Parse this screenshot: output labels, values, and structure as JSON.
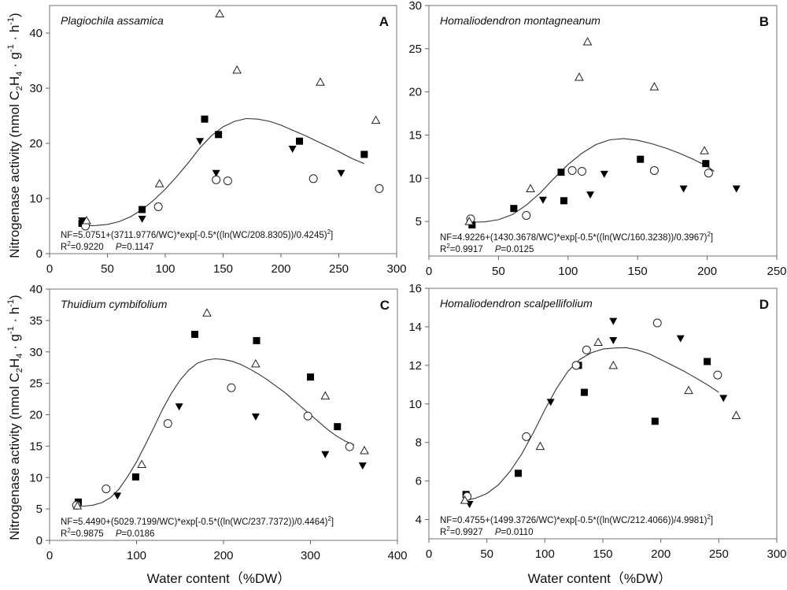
{
  "chart_data": [
    {
      "type": "scatter",
      "panel": "A",
      "title": "Plagiochila assamica",
      "xlabel": "",
      "ylabel": "Nitrogenase activity (nmol C2H4 · g-1 · h-1)",
      "xlim": [
        0,
        300
      ],
      "ylim": [
        0,
        45
      ],
      "xticks": [
        0,
        50,
        100,
        150,
        200,
        250,
        300
      ],
      "yticks": [
        0,
        10,
        20,
        30,
        40
      ],
      "equation": "NF=5.0751+(3711.9776/WC)*exp[-0.5*((ln(WC/208.8305))/0.4245)2]",
      "stats_r2": "R2=0.9220",
      "stats_p": "P=0.1147",
      "series": [
        {
          "name": "square",
          "marker": "square-filled",
          "points": [
            [
              28,
              5.5
            ],
            [
              80,
              8
            ],
            [
              134,
              24.4
            ],
            [
              146,
              21.6
            ],
            [
              216,
              20.4
            ],
            [
              272,
              18
            ]
          ]
        },
        {
          "name": "triangle-down",
          "marker": "triangle-down-filled",
          "points": [
            [
              28,
              6
            ],
            [
              80,
              6.3
            ],
            [
              130,
              20.4
            ],
            [
              144,
              14.6
            ],
            [
              210,
              19
            ],
            [
              252,
              14.6
            ]
          ]
        },
        {
          "name": "circle",
          "marker": "circle-open",
          "points": [
            [
              31,
              5
            ],
            [
              94,
              8.5
            ],
            [
              144,
              13.4
            ],
            [
              154,
              13.2
            ],
            [
              228,
              13.6
            ],
            [
              285,
              11.8
            ]
          ]
        },
        {
          "name": "triangle-up",
          "marker": "triangle-up-open",
          "points": [
            [
              32,
              6
            ],
            [
              95,
              12.7
            ],
            [
              147,
              43.5
            ],
            [
              162,
              33.3
            ],
            [
              234,
              31.1
            ],
            [
              282,
              24.2
            ]
          ]
        }
      ],
      "fit_curve": [
        [
          30,
          5.05
        ],
        [
          40,
          5.1
        ],
        [
          50,
          5.3
        ],
        [
          60,
          5.8
        ],
        [
          70,
          6.7
        ],
        [
          80,
          8
        ],
        [
          90,
          9.7
        ],
        [
          100,
          11.7
        ],
        [
          110,
          14
        ],
        [
          120,
          16.5
        ],
        [
          130,
          19.2
        ],
        [
          140,
          21.4
        ],
        [
          150,
          23
        ],
        [
          160,
          24
        ],
        [
          170,
          24.5
        ],
        [
          180,
          24.4
        ],
        [
          190,
          24
        ],
        [
          200,
          23.3
        ],
        [
          210,
          22.4
        ],
        [
          220,
          21.5
        ],
        [
          230,
          20.5
        ],
        [
          240,
          19.5
        ],
        [
          250,
          18.5
        ],
        [
          260,
          17.4
        ],
        [
          272,
          16.3
        ]
      ]
    },
    {
      "type": "scatter",
      "panel": "B",
      "title": "Homaliodendron montagneanum",
      "xlabel": "",
      "ylabel": "",
      "xlim": [
        0,
        250
      ],
      "ylim": [
        1,
        30
      ],
      "xticks": [
        0,
        50,
        100,
        150,
        200,
        250
      ],
      "yticks": [
        5,
        10,
        15,
        20,
        25,
        30
      ],
      "equation": "NF=4.9226+(1430.3678/WC)*exp[-0.5*((ln(WC/160.3238))/0.3967)2]",
      "stats_r2": "R2=0.9917",
      "stats_p": "P=0.0125",
      "series": [
        {
          "name": "square",
          "marker": "square-filled",
          "points": [
            [
              31,
              4.6
            ],
            [
              61,
              6.5
            ],
            [
              95,
              10.7
            ],
            [
              97,
              7.4
            ],
            [
              152,
              12.2
            ],
            [
              199,
              11.7
            ]
          ]
        },
        {
          "name": "triangle-down",
          "marker": "triangle-down-filled",
          "points": [
            [
              82,
              7.5
            ],
            [
              116,
              8.1
            ],
            [
              126,
              10.5
            ],
            [
              183,
              8.8
            ],
            [
              221,
              8.8
            ]
          ]
        },
        {
          "name": "circle",
          "marker": "circle-open",
          "points": [
            [
              30,
              5.3
            ],
            [
              70,
              5.7
            ],
            [
              103,
              10.9
            ],
            [
              110,
              10.8
            ],
            [
              162,
              10.9
            ],
            [
              201,
              10.6
            ]
          ]
        },
        {
          "name": "triangle-up",
          "marker": "triangle-up-open",
          "points": [
            [
              29,
              5
            ],
            [
              73,
              8.8
            ],
            [
              108,
              21.7
            ],
            [
              114,
              25.8
            ],
            [
              162,
              20.6
            ],
            [
              198,
              13.2
            ]
          ]
        }
      ],
      "fit_curve": [
        [
          31,
          4.92
        ],
        [
          40,
          4.95
        ],
        [
          50,
          5.2
        ],
        [
          60,
          5.8
        ],
        [
          70,
          6.9
        ],
        [
          80,
          8.3
        ],
        [
          90,
          10
        ],
        [
          100,
          11.6
        ],
        [
          110,
          12.9
        ],
        [
          120,
          13.9
        ],
        [
          130,
          14.45
        ],
        [
          140,
          14.6
        ],
        [
          150,
          14.4
        ],
        [
          160,
          14
        ],
        [
          170,
          13.5
        ],
        [
          180,
          12.9
        ],
        [
          190,
          12.2
        ],
        [
          200,
          11.4
        ],
        [
          205,
          10.8
        ]
      ]
    },
    {
      "type": "scatter",
      "panel": "C",
      "title": "Thuidium cymbifolium",
      "xlabel": "Water content（%DW）",
      "ylabel": "Nitrogenase activity (nmol C2H4 · g-1 · h-1)",
      "xlim": [
        0,
        400
      ],
      "ylim": [
        0,
        40
      ],
      "xticks": [
        0,
        100,
        200,
        300,
        400
      ],
      "yticks": [
        0,
        5,
        10,
        15,
        20,
        25,
        30,
        35,
        40
      ],
      "equation": "NF=5.4490+(5029.7199/WC)*exp[-0.5*((ln(WC/237.7372))/0.4464)2]",
      "stats_r2": "R2=0.9875",
      "stats_p": "P=0.0186",
      "series": [
        {
          "name": "square",
          "marker": "square-filled",
          "points": [
            [
              33,
              6.1
            ],
            [
              99,
              10.1
            ],
            [
              167,
              32.8
            ],
            [
              238,
              31.8
            ],
            [
              300,
              26
            ],
            [
              331,
              18.1
            ]
          ]
        },
        {
          "name": "triangle-down",
          "marker": "triangle-down-filled",
          "points": [
            [
              78,
              7.1
            ],
            [
              149,
              21.3
            ],
            [
              237,
              19.7
            ],
            [
              317,
              13.7
            ],
            [
              360,
              11.9
            ]
          ]
        },
        {
          "name": "circle",
          "marker": "circle-open",
          "points": [
            [
              31,
              5.6
            ],
            [
              65,
              8.2
            ],
            [
              136,
              18.6
            ],
            [
              209,
              24.3
            ],
            [
              297,
              19.8
            ],
            [
              345,
              14.9
            ]
          ]
        },
        {
          "name": "triangle-up",
          "marker": "triangle-up-open",
          "points": [
            [
              32,
              5.5
            ],
            [
              106,
              12.1
            ],
            [
              181,
              36.2
            ],
            [
              237,
              28.1
            ],
            [
              317,
              23
            ],
            [
              362,
              14.3
            ]
          ]
        }
      ],
      "fit_curve": [
        [
          30,
          5.4
        ],
        [
          40,
          5.45
        ],
        [
          50,
          5.6
        ],
        [
          60,
          6
        ],
        [
          70,
          6.8
        ],
        [
          80,
          8.2
        ],
        [
          90,
          10.2
        ],
        [
          100,
          12.5
        ],
        [
          110,
          15.2
        ],
        [
          120,
          18
        ],
        [
          130,
          20.9
        ],
        [
          140,
          23.4
        ],
        [
          150,
          25.5
        ],
        [
          160,
          27.1
        ],
        [
          170,
          28.2
        ],
        [
          180,
          28.7
        ],
        [
          190,
          28.9
        ],
        [
          200,
          28.8
        ],
        [
          210,
          28.5
        ],
        [
          220,
          28
        ],
        [
          230,
          27.3
        ],
        [
          240,
          26.5
        ],
        [
          250,
          25.6
        ],
        [
          260,
          24.6
        ],
        [
          270,
          23.6
        ],
        [
          280,
          22.4
        ],
        [
          290,
          21.2
        ],
        [
          300,
          20
        ],
        [
          310,
          18.8
        ],
        [
          320,
          17.6
        ],
        [
          330,
          16.6
        ],
        [
          340,
          15.8
        ],
        [
          350,
          15.2
        ]
      ]
    },
    {
      "type": "scatter",
      "panel": "D",
      "title": "Homaliodendron scalpellifolium",
      "xlabel": "Water content（%DW）",
      "ylabel": "",
      "xlim": [
        0,
        300
      ],
      "ylim": [
        3,
        16
      ],
      "xticks": [
        0,
        50,
        100,
        150,
        200,
        250,
        300
      ],
      "yticks": [
        4,
        6,
        8,
        10,
        12,
        14,
        16
      ],
      "equation": "NF=0.4755+(1499.3726/WC)*exp[-0.5*((ln(WC/212.4066))/4.9981)2]",
      "stats_r2": "R2=0.9927",
      "stats_p": "P=0.0110",
      "series": [
        {
          "name": "square",
          "marker": "square-filled",
          "points": [
            [
              32,
              5.3
            ],
            [
              77,
              6.4
            ],
            [
              129,
              12
            ],
            [
              134,
              10.6
            ],
            [
              195,
              9.1
            ],
            [
              240,
              12.2
            ]
          ]
        },
        {
          "name": "triangle-down",
          "marker": "triangle-down-filled",
          "points": [
            [
              35,
              4.8
            ],
            [
              105,
              10.1
            ],
            [
              159,
              14.3
            ],
            [
              159,
              13.3
            ],
            [
              217,
              13.4
            ],
            [
              254,
              10.3
            ]
          ]
        },
        {
          "name": "circle",
          "marker": "circle-open",
          "points": [
            [
              33,
              5.2
            ],
            [
              84,
              8.3
            ],
            [
              127,
              12
            ],
            [
              136,
              12.8
            ],
            [
              197,
              14.2
            ],
            [
              249,
              11.5
            ]
          ]
        },
        {
          "name": "triangle-up",
          "marker": "triangle-up-open",
          "points": [
            [
              31,
              5
            ],
            [
              96,
              7.8
            ],
            [
              146,
              13.2
            ],
            [
              159,
              12
            ],
            [
              224,
              10.7
            ],
            [
              265,
              9.4
            ]
          ]
        }
      ],
      "fit_curve": [
        [
          32,
          5
        ],
        [
          40,
          5.1
        ],
        [
          50,
          5.35
        ],
        [
          60,
          5.8
        ],
        [
          70,
          6.5
        ],
        [
          80,
          7.4
        ],
        [
          90,
          8.5
        ],
        [
          100,
          9.7
        ],
        [
          110,
          10.8
        ],
        [
          120,
          11.7
        ],
        [
          130,
          12.3
        ],
        [
          140,
          12.65
        ],
        [
          150,
          12.85
        ],
        [
          160,
          12.9
        ],
        [
          170,
          12.92
        ],
        [
          180,
          12.8
        ],
        [
          190,
          12.6
        ],
        [
          200,
          12.3
        ],
        [
          210,
          12
        ],
        [
          220,
          11.7
        ],
        [
          230,
          11.35
        ],
        [
          240,
          11
        ],
        [
          250,
          10.6
        ]
      ]
    }
  ],
  "axis_titles": {
    "y_left_prefix": "Nitrogenase activity (nmol C",
    "y_sub_2": "2",
    "y_H": "H",
    "y_sub_4": "4",
    "y_g": " · g",
    "y_sup_neg1": "-1",
    "y_h": " · h",
    "y_close": ")",
    "x_bottom": "Water content（%DW）"
  }
}
